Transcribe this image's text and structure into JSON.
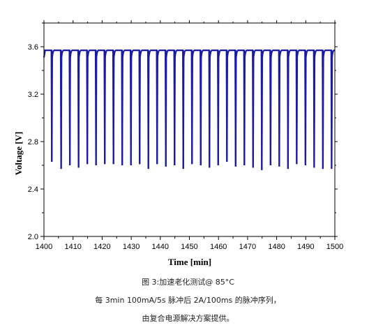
{
  "chart_data": {
    "type": "line",
    "xlabel": "Time [min]",
    "ylabel": "Voltage [V]",
    "xlim": [
      1400,
      1500
    ],
    "ylim": [
      2.0,
      3.8
    ],
    "x_ticks": [
      1400,
      1410,
      1420,
      1430,
      1440,
      1450,
      1460,
      1470,
      1480,
      1490,
      1500
    ],
    "y_ticks": [
      2.0,
      2.4,
      2.8,
      3.2,
      3.6
    ],
    "grid": false,
    "line_color": "#1a1aa6",
    "baseline_voltage": 3.57,
    "pulses": [
      {
        "x": 1402.7,
        "min": 2.63
      },
      {
        "x": 1405.9,
        "min": 2.57
      },
      {
        "x": 1408.9,
        "min": 2.6
      },
      {
        "x": 1411.9,
        "min": 2.58
      },
      {
        "x": 1414.9,
        "min": 2.61
      },
      {
        "x": 1417.9,
        "min": 2.6
      },
      {
        "x": 1420.9,
        "min": 2.61
      },
      {
        "x": 1423.9,
        "min": 2.61
      },
      {
        "x": 1426.9,
        "min": 2.6
      },
      {
        "x": 1429.9,
        "min": 2.6
      },
      {
        "x": 1432.9,
        "min": 2.61
      },
      {
        "x": 1435.9,
        "min": 2.57
      },
      {
        "x": 1438.9,
        "min": 2.61
      },
      {
        "x": 1441.9,
        "min": 2.59
      },
      {
        "x": 1444.9,
        "min": 2.6
      },
      {
        "x": 1447.9,
        "min": 2.57
      },
      {
        "x": 1450.9,
        "min": 2.61
      },
      {
        "x": 1453.9,
        "min": 2.6
      },
      {
        "x": 1456.9,
        "min": 2.58
      },
      {
        "x": 1459.9,
        "min": 2.6
      },
      {
        "x": 1462.9,
        "min": 2.63
      },
      {
        "x": 1465.9,
        "min": 2.59
      },
      {
        "x": 1468.9,
        "min": 2.6
      },
      {
        "x": 1471.9,
        "min": 2.58
      },
      {
        "x": 1474.9,
        "min": 2.56
      },
      {
        "x": 1477.9,
        "min": 2.6
      },
      {
        "x": 1480.9,
        "min": 2.59
      },
      {
        "x": 1483.9,
        "min": 2.57
      },
      {
        "x": 1486.9,
        "min": 2.61
      },
      {
        "x": 1489.9,
        "min": 2.6
      },
      {
        "x": 1492.9,
        "min": 2.58
      },
      {
        "x": 1495.9,
        "min": 2.57
      },
      {
        "x": 1498.9,
        "min": 2.57
      }
    ]
  },
  "caption": {
    "line1": "图 3:加速老化测试@ 85°C",
    "line2": "每 3min 100mA/5s 脉冲后 2A/100ms 的脉冲序列，",
    "line3": "由复合电源解决方案提供。"
  }
}
